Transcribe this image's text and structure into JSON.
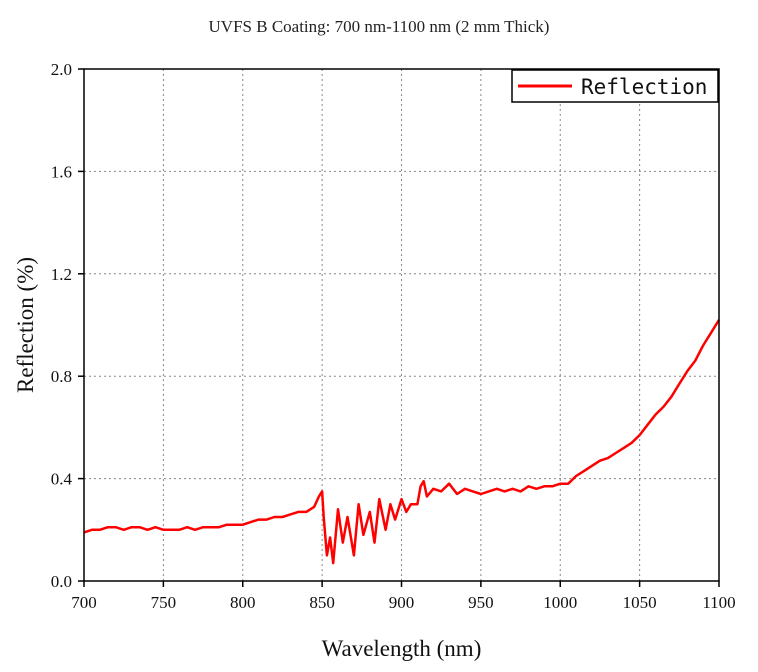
{
  "chart_data": {
    "type": "line",
    "title": "UVFS B Coating: 700 nm-1100 nm (2 mm Thick)",
    "xlabel": "Wavelength (nm)",
    "ylabel": "Reflection (%)",
    "xlim": [
      700,
      1100
    ],
    "ylim": [
      0.0,
      2.0
    ],
    "x_ticks": [
      "700",
      "750",
      "800",
      "850",
      "900",
      "950",
      "1000",
      "1050",
      "1100"
    ],
    "y_ticks": [
      "0.0",
      "0.4",
      "0.8",
      "1.2",
      "1.6",
      "2.0"
    ],
    "grid": true,
    "legend_position": "top-right",
    "series": [
      {
        "name": "Reflection",
        "color": "#ff0000",
        "x": [
          700,
          705,
          710,
          715,
          720,
          725,
          730,
          735,
          740,
          745,
          750,
          755,
          760,
          765,
          770,
          775,
          780,
          785,
          790,
          795,
          800,
          805,
          810,
          815,
          820,
          825,
          830,
          835,
          840,
          845,
          848,
          850,
          851,
          853,
          855,
          857,
          860,
          863,
          866,
          870,
          873,
          876,
          880,
          883,
          886,
          890,
          893,
          896,
          900,
          903,
          906,
          910,
          912,
          914,
          916,
          920,
          925,
          930,
          935,
          940,
          945,
          950,
          955,
          960,
          965,
          970,
          975,
          980,
          985,
          990,
          995,
          1000,
          1005,
          1010,
          1015,
          1020,
          1025,
          1030,
          1035,
          1040,
          1045,
          1050,
          1055,
          1060,
          1065,
          1070,
          1075,
          1080,
          1085,
          1090,
          1095,
          1100
        ],
        "y": [
          0.19,
          0.2,
          0.2,
          0.21,
          0.21,
          0.2,
          0.21,
          0.21,
          0.2,
          0.21,
          0.2,
          0.2,
          0.2,
          0.21,
          0.2,
          0.21,
          0.21,
          0.21,
          0.22,
          0.22,
          0.22,
          0.23,
          0.24,
          0.24,
          0.25,
          0.25,
          0.26,
          0.27,
          0.27,
          0.29,
          0.33,
          0.35,
          0.25,
          0.1,
          0.17,
          0.07,
          0.28,
          0.15,
          0.25,
          0.1,
          0.3,
          0.18,
          0.27,
          0.15,
          0.32,
          0.2,
          0.3,
          0.24,
          0.32,
          0.27,
          0.3,
          0.3,
          0.37,
          0.39,
          0.33,
          0.36,
          0.35,
          0.38,
          0.34,
          0.36,
          0.35,
          0.34,
          0.35,
          0.36,
          0.35,
          0.36,
          0.35,
          0.37,
          0.36,
          0.37,
          0.37,
          0.38,
          0.38,
          0.41,
          0.43,
          0.45,
          0.47,
          0.48,
          0.5,
          0.52,
          0.54,
          0.57,
          0.61,
          0.65,
          0.68,
          0.72,
          0.77,
          0.82,
          0.86,
          0.92,
          0.97,
          1.02
        ]
      }
    ]
  }
}
